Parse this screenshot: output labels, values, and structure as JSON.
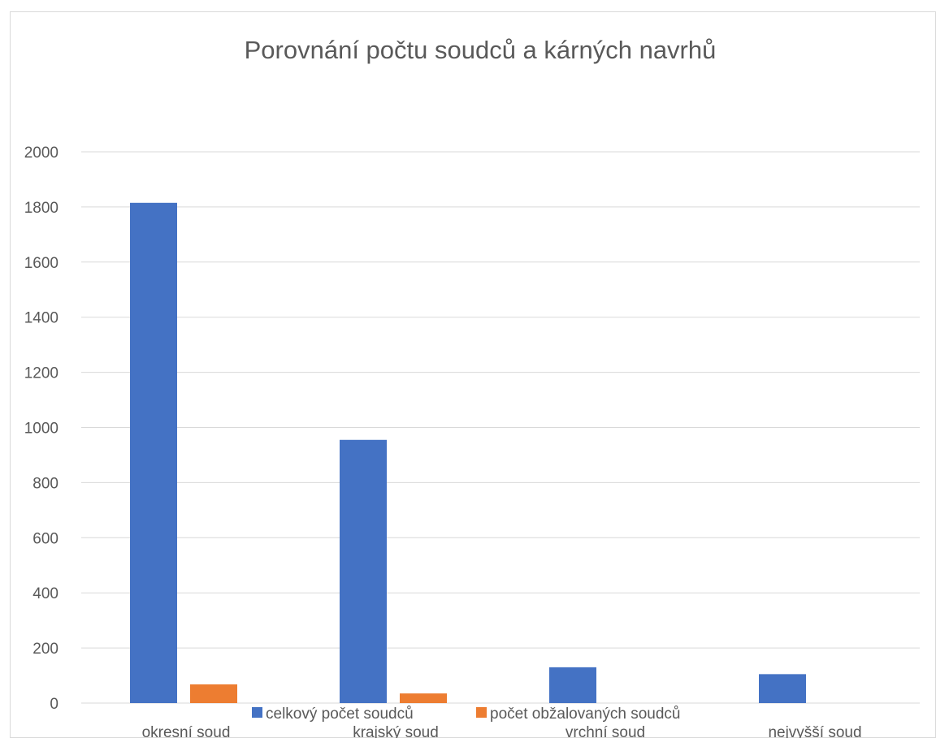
{
  "chart_data": {
    "type": "bar",
    "title": "Porovnání počtu soudců a kárných navrhů",
    "categories": [
      "okresní soud",
      "krajský soud",
      "vrchní soud",
      "nejvyšší soud"
    ],
    "series": [
      {
        "name": "celkový počet soudců",
        "values": [
          1815,
          955,
          130,
          105
        ],
        "color": "#4472C4"
      },
      {
        "name": "počet obžalovaných soudců",
        "values": [
          68,
          35,
          0,
          0
        ],
        "color": "#ED7D31"
      }
    ],
    "ylim": [
      0,
      2000
    ],
    "yticks": [
      0,
      200,
      400,
      600,
      800,
      1000,
      1200,
      1400,
      1600,
      1800,
      2000
    ],
    "grid": true,
    "legend": "bottom"
  }
}
